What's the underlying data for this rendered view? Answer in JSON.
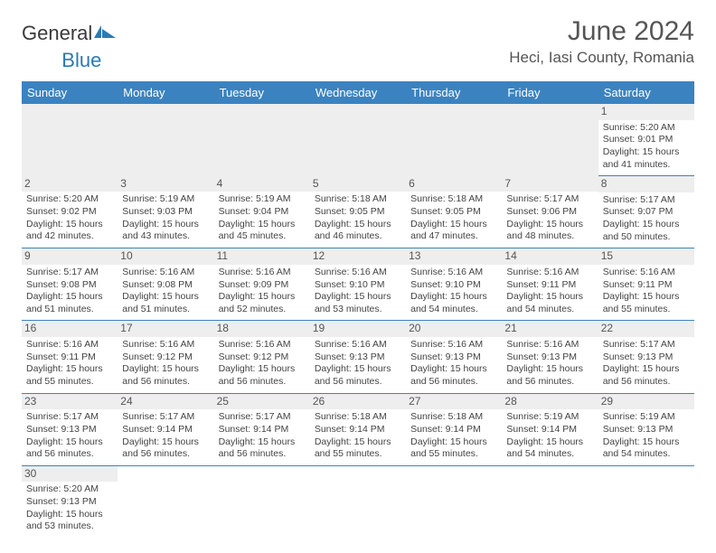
{
  "logo": {
    "text1": "General",
    "text2": "Blue"
  },
  "title": "June 2024",
  "location": "Heci, Iasi County, Romania",
  "colors": {
    "header_bg": "#3b83c0",
    "header_text": "#ffffff",
    "day_header_bg": "#eeeeee",
    "border": "#3b83c0",
    "text": "#444444",
    "title_text": "#555555"
  },
  "weekdays": [
    "Sunday",
    "Monday",
    "Tuesday",
    "Wednesday",
    "Thursday",
    "Friday",
    "Saturday"
  ],
  "days": {
    "1": {
      "sunrise": "5:20 AM",
      "sunset": "9:01 PM",
      "dl": "15 hours and 41 minutes."
    },
    "2": {
      "sunrise": "5:20 AM",
      "sunset": "9:02 PM",
      "dl": "15 hours and 42 minutes."
    },
    "3": {
      "sunrise": "5:19 AM",
      "sunset": "9:03 PM",
      "dl": "15 hours and 43 minutes."
    },
    "4": {
      "sunrise": "5:19 AM",
      "sunset": "9:04 PM",
      "dl": "15 hours and 45 minutes."
    },
    "5": {
      "sunrise": "5:18 AM",
      "sunset": "9:05 PM",
      "dl": "15 hours and 46 minutes."
    },
    "6": {
      "sunrise": "5:18 AM",
      "sunset": "9:05 PM",
      "dl": "15 hours and 47 minutes."
    },
    "7": {
      "sunrise": "5:17 AM",
      "sunset": "9:06 PM",
      "dl": "15 hours and 48 minutes."
    },
    "8": {
      "sunrise": "5:17 AM",
      "sunset": "9:07 PM",
      "dl": "15 hours and 50 minutes."
    },
    "9": {
      "sunrise": "5:17 AM",
      "sunset": "9:08 PM",
      "dl": "15 hours and 51 minutes."
    },
    "10": {
      "sunrise": "5:16 AM",
      "sunset": "9:08 PM",
      "dl": "15 hours and 51 minutes."
    },
    "11": {
      "sunrise": "5:16 AM",
      "sunset": "9:09 PM",
      "dl": "15 hours and 52 minutes."
    },
    "12": {
      "sunrise": "5:16 AM",
      "sunset": "9:10 PM",
      "dl": "15 hours and 53 minutes."
    },
    "13": {
      "sunrise": "5:16 AM",
      "sunset": "9:10 PM",
      "dl": "15 hours and 54 minutes."
    },
    "14": {
      "sunrise": "5:16 AM",
      "sunset": "9:11 PM",
      "dl": "15 hours and 54 minutes."
    },
    "15": {
      "sunrise": "5:16 AM",
      "sunset": "9:11 PM",
      "dl": "15 hours and 55 minutes."
    },
    "16": {
      "sunrise": "5:16 AM",
      "sunset": "9:11 PM",
      "dl": "15 hours and 55 minutes."
    },
    "17": {
      "sunrise": "5:16 AM",
      "sunset": "9:12 PM",
      "dl": "15 hours and 56 minutes."
    },
    "18": {
      "sunrise": "5:16 AM",
      "sunset": "9:12 PM",
      "dl": "15 hours and 56 minutes."
    },
    "19": {
      "sunrise": "5:16 AM",
      "sunset": "9:13 PM",
      "dl": "15 hours and 56 minutes."
    },
    "20": {
      "sunrise": "5:16 AM",
      "sunset": "9:13 PM",
      "dl": "15 hours and 56 minutes."
    },
    "21": {
      "sunrise": "5:16 AM",
      "sunset": "9:13 PM",
      "dl": "15 hours and 56 minutes."
    },
    "22": {
      "sunrise": "5:17 AM",
      "sunset": "9:13 PM",
      "dl": "15 hours and 56 minutes."
    },
    "23": {
      "sunrise": "5:17 AM",
      "sunset": "9:13 PM",
      "dl": "15 hours and 56 minutes."
    },
    "24": {
      "sunrise": "5:17 AM",
      "sunset": "9:14 PM",
      "dl": "15 hours and 56 minutes."
    },
    "25": {
      "sunrise": "5:17 AM",
      "sunset": "9:14 PM",
      "dl": "15 hours and 56 minutes."
    },
    "26": {
      "sunrise": "5:18 AM",
      "sunset": "9:14 PM",
      "dl": "15 hours and 55 minutes."
    },
    "27": {
      "sunrise": "5:18 AM",
      "sunset": "9:14 PM",
      "dl": "15 hours and 55 minutes."
    },
    "28": {
      "sunrise": "5:19 AM",
      "sunset": "9:14 PM",
      "dl": "15 hours and 54 minutes."
    },
    "29": {
      "sunrise": "5:19 AM",
      "sunset": "9:13 PM",
      "dl": "15 hours and 54 minutes."
    },
    "30": {
      "sunrise": "5:20 AM",
      "sunset": "9:13 PM",
      "dl": "15 hours and 53 minutes."
    }
  },
  "labels": {
    "sunrise": "Sunrise: ",
    "sunset": "Sunset: ",
    "daylight": "Daylight: "
  },
  "layout": [
    [
      null,
      null,
      null,
      null,
      null,
      null,
      "1"
    ],
    [
      "2",
      "3",
      "4",
      "5",
      "6",
      "7",
      "8"
    ],
    [
      "9",
      "10",
      "11",
      "12",
      "13",
      "14",
      "15"
    ],
    [
      "16",
      "17",
      "18",
      "19",
      "20",
      "21",
      "22"
    ],
    [
      "23",
      "24",
      "25",
      "26",
      "27",
      "28",
      "29"
    ],
    [
      "30",
      null,
      null,
      null,
      null,
      null,
      null
    ]
  ]
}
